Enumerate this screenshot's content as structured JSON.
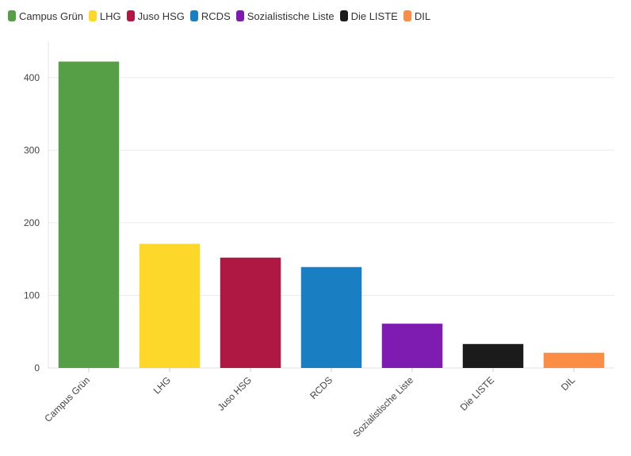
{
  "chart_data": {
    "type": "bar",
    "categories": [
      "Campus Grün",
      "LHG",
      "Juso HSG",
      "RCDS",
      "Sozialistische Liste",
      "Die LISTE",
      "DIL"
    ],
    "values": [
      422,
      171,
      152,
      139,
      61,
      33,
      21
    ],
    "colors": [
      "#569f47",
      "#fdd72a",
      "#ae1843",
      "#1a7ec2",
      "#7e1bb0",
      "#1b1b1b",
      "#fb8e44"
    ],
    "ylim": [
      0,
      450
    ],
    "yticks": [
      0,
      100,
      200,
      300,
      400
    ],
    "grid": true,
    "legend_position": "top-left",
    "xlabel": "",
    "ylabel": "",
    "title": ""
  }
}
